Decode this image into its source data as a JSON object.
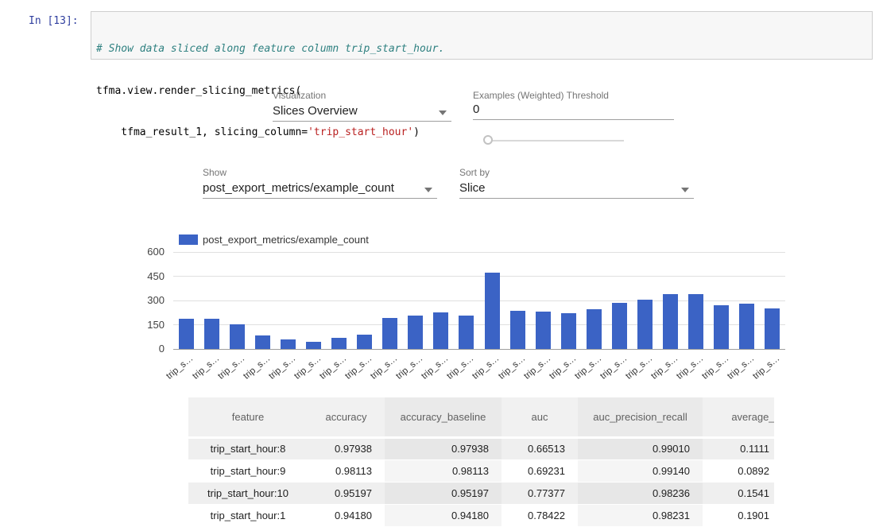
{
  "notebook": {
    "prompt": "In [13]:",
    "code": {
      "line1_comment": "# Show data sliced along feature column trip_start_hour.",
      "line2": "tfma.view.render_slicing_metrics(",
      "line3_pre": "    tfma_result_1, slicing_column=",
      "line3_string": "'trip_start_hour'",
      "line3_post": ")"
    }
  },
  "controls": {
    "visualization_label": "Visualization",
    "visualization_value": "Slices Overview",
    "threshold_label": "Examples (Weighted) Threshold",
    "threshold_value": "0",
    "show_label": "Show",
    "show_value": "post_export_metrics/example_count",
    "sort_label": "Sort by",
    "sort_value": "Slice"
  },
  "chart_data": {
    "type": "bar",
    "legend": "post_export_metrics/example_count",
    "bar_color": "#3b63c5",
    "ylim": [
      0,
      600
    ],
    "yticks": [
      0,
      150,
      300,
      450,
      600
    ],
    "grid": true,
    "legend_position": "top-left",
    "categories": [
      "trip_s…",
      "trip_s…",
      "trip_s…",
      "trip_s…",
      "trip_s…",
      "trip_s…",
      "trip_s…",
      "trip_s…",
      "trip_s…",
      "trip_s…",
      "trip_s…",
      "trip_s…",
      "trip_s…",
      "trip_s…",
      "trip_s…",
      "trip_s…",
      "trip_s…",
      "trip_s…",
      "trip_s…",
      "trip_s…",
      "trip_s…",
      "trip_s…",
      "trip_s…",
      "trip_s…"
    ],
    "values": [
      187,
      187,
      150,
      84,
      59,
      44,
      69,
      89,
      192,
      207,
      226,
      207,
      470,
      236,
      231,
      221,
      246,
      285,
      305,
      339,
      339,
      271,
      278,
      252
    ]
  },
  "table": {
    "headers": [
      "feature",
      "accuracy",
      "accuracy_baseline",
      "auc",
      "auc_precision_recall",
      "average_loss"
    ],
    "shaded_columns": [
      2,
      4
    ],
    "rows": [
      [
        "trip_start_hour:8",
        "0.97938",
        "0.97938",
        "0.66513",
        "0.99010",
        "0.1111"
      ],
      [
        "trip_start_hour:9",
        "0.98113",
        "0.98113",
        "0.69231",
        "0.99140",
        "0.0892"
      ],
      [
        "trip_start_hour:10",
        "0.95197",
        "0.95197",
        "0.77377",
        "0.98236",
        "0.1541"
      ],
      [
        "trip_start_hour:1",
        "0.94180",
        "0.94180",
        "0.78422",
        "0.98231",
        "0.1901"
      ]
    ]
  }
}
